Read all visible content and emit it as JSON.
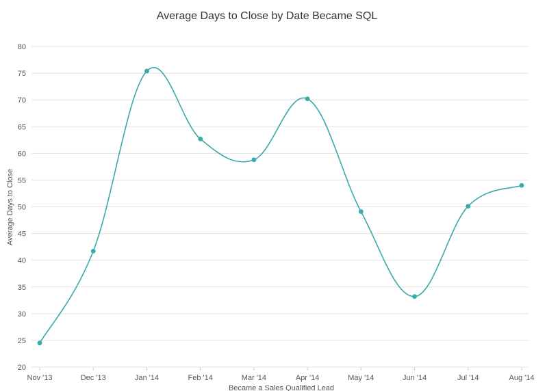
{
  "chart_data": {
    "type": "line",
    "title": "Average Days to Close by Date Became SQL",
    "xlabel": "Became a Sales Qualified Lead",
    "ylabel": "Average Days to Close",
    "categories": [
      "Nov '13",
      "Dec '13",
      "Jan '14",
      "Feb '14",
      "Mar '14",
      "Apr '14",
      "May '14",
      "Jun '14",
      "Jul '14",
      "Aug '14"
    ],
    "series": [
      {
        "values": [
          24.5,
          41.7,
          75.4,
          62.7,
          58.8,
          70.2,
          49.1,
          33.2,
          50.1,
          54.0
        ]
      }
    ],
    "ylim": [
      20,
      80
    ],
    "yticks": [
      "20",
      "25",
      "30",
      "35",
      "40",
      "45",
      "50",
      "55",
      "60",
      "65",
      "70",
      "75",
      "80"
    ],
    "grid": true,
    "legend": "none",
    "line_color": "#3aa9a9",
    "grid_color": "#e3e3e3"
  }
}
